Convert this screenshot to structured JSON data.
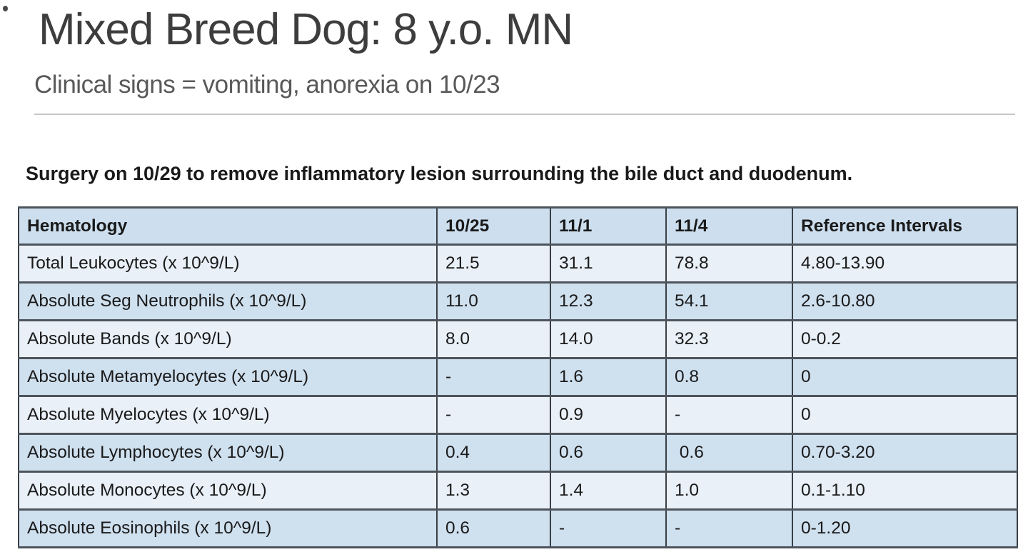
{
  "slide": {
    "title": "Mixed Breed Dog: 8 y.o. MN",
    "subtitle": "Clinical signs = vomiting, anorexia on 10/23",
    "note": "Surgery on 10/29 to remove inflammatory lesion surrounding the bile duct and duodenum."
  },
  "table": {
    "headers": [
      "Hematology",
      "10/25",
      "11/1",
      "11/4",
      "Reference Intervals"
    ],
    "rows": [
      [
        "Total Leukocytes (x 10^9/L)",
        "21.5",
        "31.1",
        "78.8",
        "4.80-13.90"
      ],
      [
        "Absolute Seg Neutrophils (x 10^9/L)",
        "11.0",
        "12.3",
        "54.1",
        "2.6-10.80"
      ],
      [
        "Absolute Bands (x 10^9/L)",
        "8.0",
        "14.0",
        "32.3",
        "0-0.2"
      ],
      [
        "Absolute Metamyelocytes (x 10^9/L)",
        "-",
        "1.6",
        "0.8",
        "0"
      ],
      [
        "Absolute Myelocytes (x 10^9/L)",
        "-",
        "0.9",
        "-",
        "0"
      ],
      [
        "Absolute Lymphocytes (x 10^9/L)",
        "0.4",
        "0.6",
        " 0.6",
        "0.70-3.20"
      ],
      [
        "Absolute Monocytes (x 10^9/L)",
        "1.3",
        "1.4",
        "1.0",
        "0.1-1.10"
      ],
      [
        "Absolute Eosinophils (x 10^9/L)",
        "0.6",
        "-",
        "-",
        "0-1.20"
      ]
    ]
  },
  "colors": {
    "header_fill": "#CDDFEF",
    "band_dark": "#CFE0EF",
    "band_light": "#E9F0F8",
    "border_dark": "#4D545C",
    "border_vert": "#3A3F45",
    "title_text": "#3D3D3D",
    "subtitle_text": "#595959",
    "body_text": "#1A1A1A",
    "divider": "#C6C6C6"
  }
}
